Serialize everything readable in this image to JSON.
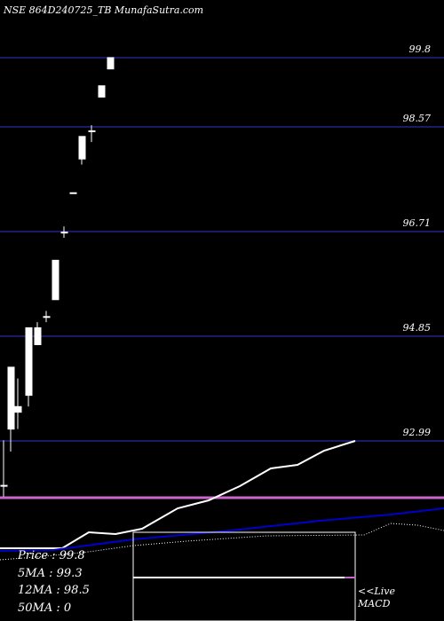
{
  "chart_data": {
    "type": "candlestick",
    "title": "NSE 864D240725_TB MunafaSutra.com",
    "y_ticks": [
      99.8,
      98.57,
      96.71,
      94.85,
      92.99
    ],
    "y_tick_labels": [
      "99.8",
      "98.57",
      "96.71",
      "94.85",
      "92.99"
    ],
    "candles": [
      {
        "open": 92.2,
        "close": 92.2,
        "high": 93.0,
        "low": 92.0,
        "up": true
      },
      {
        "open": 93.2,
        "close": 94.3,
        "high": 94.3,
        "low": 92.8,
        "up": true
      },
      {
        "open": 93.5,
        "close": 93.6,
        "high": 94.1,
        "low": 93.2,
        "up": true
      },
      {
        "open": 93.8,
        "close": 95.0,
        "high": 95.0,
        "low": 93.6,
        "up": true
      },
      {
        "open": 94.7,
        "close": 95.0,
        "high": 95.1,
        "low": 94.7,
        "up": true
      },
      {
        "open": 95.2,
        "close": 95.2,
        "high": 95.3,
        "low": 95.1,
        "up": true
      },
      {
        "open": 96.2,
        "close": 95.5,
        "high": 96.2,
        "low": 95.5,
        "up": false
      },
      {
        "open": 96.7,
        "close": 96.7,
        "high": 96.8,
        "low": 96.6,
        "up": true
      },
      {
        "open": 97.4,
        "close": 97.4,
        "high": 97.4,
        "low": 97.4,
        "up": true
      },
      {
        "open": 98.0,
        "close": 98.4,
        "high": 98.4,
        "low": 97.9,
        "up": true
      },
      {
        "open": 98.5,
        "close": 98.5,
        "high": 98.6,
        "low": 98.3,
        "up": true
      },
      {
        "open": 99.1,
        "close": 99.3,
        "high": 99.3,
        "low": 99.1,
        "up": true
      },
      {
        "open": 99.6,
        "close": 99.8,
        "high": 99.8,
        "low": 99.6,
        "up": true
      }
    ],
    "info": {
      "price_label": "Price",
      "price_value": "99.8",
      "ma5_label": "5MA",
      "ma5_value": "99.3",
      "ma12_label": "12MA",
      "ma12_value": "98.5",
      "ma50_label": "50MA",
      "ma50_value": "0"
    },
    "macd_label_1": "<<Live",
    "macd_label_2": "MACD",
    "colors": {
      "grid": "#1a1a66",
      "candle": "#ffffff",
      "ma_white": "#ffffff",
      "ma_blue": "#0000cc",
      "macd_line": "#cc66cc",
      "down_wick": "#ff3333"
    }
  }
}
